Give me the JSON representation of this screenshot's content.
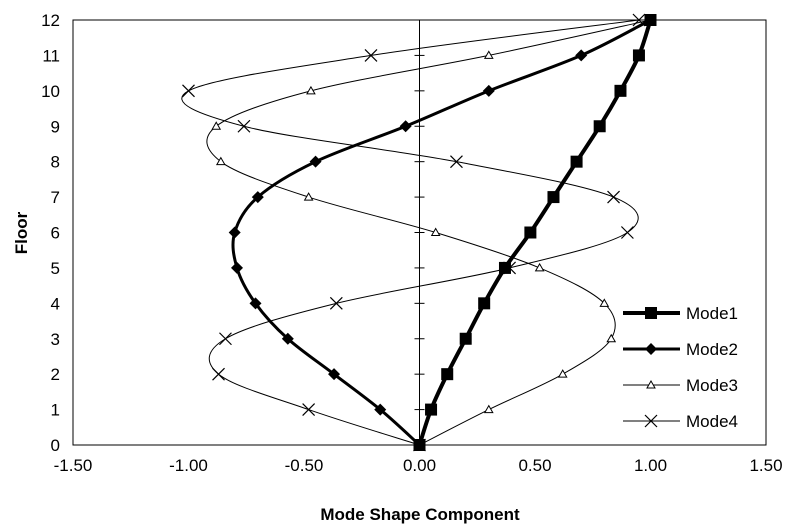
{
  "chart_data": {
    "type": "line",
    "title": "",
    "xlabel": "Mode Shape Component",
    "ylabel": "Floor",
    "xlim": [
      -1.5,
      1.5
    ],
    "ylim": [
      0,
      12
    ],
    "x_ticks": [
      "-1.50",
      "-1.00",
      "-0.50",
      "0.00",
      "0.50",
      "1.00",
      "1.50"
    ],
    "y_ticks": [
      "0",
      "1",
      "2",
      "3",
      "4",
      "5",
      "6",
      "7",
      "8",
      "9",
      "10",
      "11",
      "12"
    ],
    "grid": false,
    "legend_position": "right",
    "y": [
      0,
      1,
      2,
      3,
      4,
      5,
      6,
      7,
      8,
      9,
      10,
      11,
      12
    ],
    "series": [
      {
        "name": "Mode1",
        "marker": "square",
        "line_weight": "heavy",
        "x": [
          0.0,
          0.05,
          0.12,
          0.2,
          0.28,
          0.37,
          0.48,
          0.58,
          0.68,
          0.78,
          0.87,
          0.95,
          1.0
        ]
      },
      {
        "name": "Mode2",
        "marker": "diamond",
        "line_weight": "medium",
        "x": [
          0.0,
          -0.17,
          -0.37,
          -0.57,
          -0.71,
          -0.79,
          -0.8,
          -0.7,
          -0.45,
          -0.06,
          0.3,
          0.7,
          1.0
        ]
      },
      {
        "name": "Mode3",
        "marker": "triangle",
        "line_weight": "thin",
        "x": [
          0.0,
          0.3,
          0.62,
          0.83,
          0.8,
          0.52,
          0.07,
          -0.48,
          -0.86,
          -0.88,
          -0.47,
          0.3,
          1.0
        ]
      },
      {
        "name": "Mode4",
        "marker": "x",
        "line_weight": "thin",
        "x": [
          0.0,
          -0.48,
          -0.87,
          -0.84,
          -0.36,
          0.39,
          0.9,
          0.84,
          0.16,
          -0.76,
          -1.0,
          -0.21,
          0.95
        ]
      }
    ]
  }
}
